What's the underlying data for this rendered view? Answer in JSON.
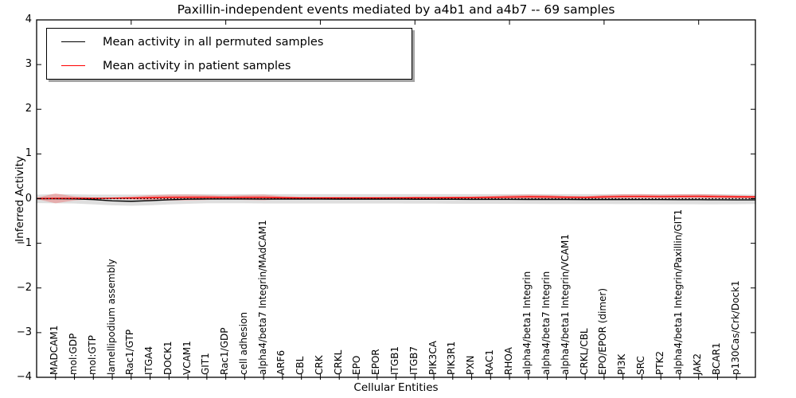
{
  "title": "Paxillin-independent events mediated by a4b1 and a4b7 -- 69 samples",
  "axes": {
    "x_label": "Cellular Entities",
    "y_label": "Inferred Activity",
    "y_tick_labels": [
      "4",
      "3",
      "2",
      "1",
      "0",
      "−1",
      "−2",
      "−3",
      "−4"
    ],
    "y_tick_values": [
      4,
      3,
      2,
      1,
      0,
      -1,
      -2,
      -3,
      -4
    ],
    "y_lim": [
      -4,
      4
    ]
  },
  "legend": {
    "entries": [
      {
        "label": "Mean activity in all permuted samples",
        "color": "#000000"
      },
      {
        "label": "Mean activity in patient samples",
        "color": "#ff0000"
      }
    ]
  },
  "chart_data": {
    "type": "line",
    "title": "Paxillin-independent events mediated by a4b1 and a4b7 -- 69 samples",
    "xlabel": "Cellular Entities",
    "ylabel": "Inferred Activity",
    "ylim": [
      -4,
      4
    ],
    "grid": false,
    "legend_position": "upper left",
    "zero_line": {
      "y": 0,
      "style": "dotted",
      "color": "#000000"
    },
    "x_tick_positions": [
      0,
      5,
      10,
      15,
      20,
      25,
      30,
      35
    ],
    "categories": [
      "MADCAM1",
      "mol:GDP",
      "mol:GTP",
      "lamellipodium assembly",
      "Rac1/GTP",
      "ITGA4",
      "DOCK1",
      "VCAM1",
      "GIT1",
      "Rac1/GDP",
      "cell adhesion",
      "alpha4/beta7 Integrin/MAdCAM1",
      "ARF6",
      "CBL",
      "CRK",
      "CRKL",
      "EPO",
      "EPOR",
      "ITGB1",
      "ITGB7",
      "PIK3CA",
      "PIK3R1",
      "PXN",
      "RAC1",
      "RHOA",
      "alpha4/beta1 Integrin",
      "alpha4/beta7 Integrin",
      "alpha4/beta1 Integrin/VCAM1",
      "CRKL/CBL",
      "EPO/EPOR (dimer)",
      "PI3K",
      "SRC",
      "PTK2",
      "alpha4/beta1 Integrin/Paxillin/GIT1",
      "JAK2",
      "BCAR1",
      "p130Cas/Crk/Dock1"
    ],
    "x": [
      0,
      1,
      2,
      3,
      4,
      5,
      6,
      7,
      8,
      9,
      10,
      11,
      12,
      13,
      14,
      15,
      16,
      17,
      18,
      19,
      20,
      21,
      22,
      23,
      24,
      25,
      26,
      27,
      28,
      29,
      30,
      31,
      32,
      33,
      34,
      35,
      36,
      37,
      38
    ],
    "categories_x_note": "entities sit at x=1..37; x=0 and x=38 are the plot edges",
    "series": [
      {
        "name": "Mean activity in all permuted samples",
        "color": "#000000",
        "band_color": "rgba(0,0,0,0.13)",
        "values": [
          0.0,
          0.0,
          -0.005,
          -0.02,
          -0.05,
          -0.06,
          -0.045,
          -0.025,
          -0.012,
          -0.008,
          -0.008,
          -0.008,
          -0.01,
          -0.01,
          -0.01,
          -0.01,
          -0.012,
          -0.012,
          -0.012,
          -0.012,
          -0.014,
          -0.014,
          -0.014,
          -0.016,
          -0.016,
          -0.016,
          -0.018,
          -0.018,
          -0.018,
          -0.02,
          -0.02,
          -0.02,
          -0.022,
          -0.022,
          -0.024,
          -0.024,
          -0.026,
          -0.028,
          -0.028
        ],
        "band_upper": [
          0.09,
          0.1,
          0.095,
          0.09,
          0.09,
          0.09,
          0.09,
          0.095,
          0.1,
          0.1,
          0.1,
          0.1,
          0.1,
          0.1,
          0.1,
          0.1,
          0.1,
          0.1,
          0.1,
          0.1,
          0.1,
          0.1,
          0.1,
          0.1,
          0.1,
          0.1,
          0.1,
          0.1,
          0.1,
          0.1,
          0.1,
          0.1,
          0.1,
          0.1,
          0.1,
          0.1,
          0.1,
          0.095,
          0.09
        ],
        "band_lower": [
          -0.1,
          -0.105,
          -0.11,
          -0.13,
          -0.15,
          -0.16,
          -0.15,
          -0.13,
          -0.115,
          -0.105,
          -0.105,
          -0.105,
          -0.11,
          -0.11,
          -0.11,
          -0.11,
          -0.11,
          -0.11,
          -0.11,
          -0.11,
          -0.112,
          -0.112,
          -0.115,
          -0.115,
          -0.115,
          -0.118,
          -0.118,
          -0.12,
          -0.12,
          -0.12,
          -0.12,
          -0.122,
          -0.122,
          -0.125,
          -0.125,
          -0.128,
          -0.128,
          -0.125,
          -0.12
        ]
      },
      {
        "name": "Mean activity in patient samples",
        "color": "#ff0000",
        "band_color": "rgba(255,0,0,0.22)",
        "values": [
          0.0,
          0.005,
          0.005,
          0.005,
          0.008,
          0.012,
          0.02,
          0.028,
          0.03,
          0.03,
          0.025,
          0.028,
          0.028,
          0.018,
          0.015,
          0.015,
          0.015,
          0.015,
          0.015,
          0.016,
          0.018,
          0.018,
          0.02,
          0.022,
          0.028,
          0.035,
          0.04,
          0.038,
          0.032,
          0.028,
          0.038,
          0.048,
          0.05,
          0.046,
          0.05,
          0.052,
          0.046,
          0.04,
          0.038
        ],
        "band_upper": [
          0.02,
          0.115,
          0.05,
          0.025,
          0.025,
          0.05,
          0.075,
          0.09,
          0.09,
          0.08,
          0.065,
          0.08,
          0.088,
          0.055,
          0.04,
          0.038,
          0.038,
          0.038,
          0.038,
          0.038,
          0.04,
          0.04,
          0.042,
          0.05,
          0.06,
          0.078,
          0.088,
          0.08,
          0.062,
          0.055,
          0.08,
          0.098,
          0.1,
          0.09,
          0.098,
          0.1,
          0.09,
          0.072,
          0.06
        ],
        "band_lower": [
          -0.01,
          -0.105,
          -0.04,
          -0.012,
          -0.008,
          -0.02,
          -0.035,
          -0.042,
          -0.04,
          -0.03,
          -0.018,
          -0.028,
          -0.035,
          -0.015,
          -0.008,
          -0.006,
          -0.006,
          -0.006,
          -0.006,
          -0.006,
          -0.006,
          -0.006,
          -0.006,
          -0.006,
          -0.008,
          -0.012,
          -0.015,
          -0.012,
          -0.008,
          -0.004,
          -0.002,
          0.0,
          0.0,
          0.0,
          0.0,
          0.002,
          0.0,
          -0.002,
          -0.004
        ]
      }
    ]
  }
}
